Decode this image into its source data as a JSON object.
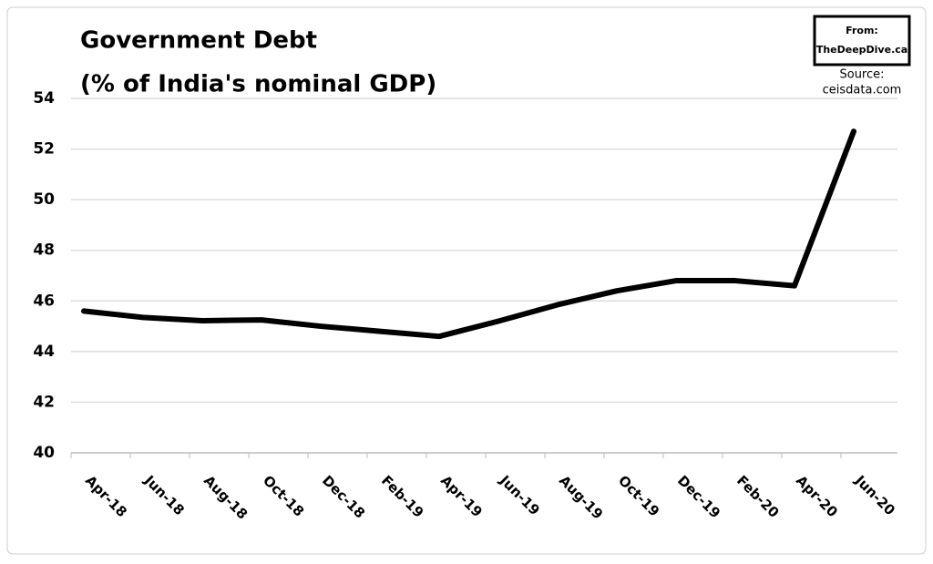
{
  "chart_data": {
    "type": "line",
    "title_lines": [
      "Government Debt",
      "(% of India's nominal GDP)"
    ],
    "badge": [
      "From:",
      "TheDeepDive.ca"
    ],
    "source": [
      "Source:",
      "ceisdata.com"
    ],
    "categories": [
      "Apr-18",
      "Jun-18",
      "Aug-18",
      "Oct-18",
      "Dec-18",
      "Feb-19",
      "Apr-19",
      "Jun-19",
      "Aug-19",
      "Oct-19",
      "Dec-19",
      "Feb-20",
      "Apr-20",
      "Jun-20"
    ],
    "values": [
      45.6,
      45.35,
      45.22,
      45.25,
      45.0,
      44.8,
      44.6,
      45.2,
      45.85,
      46.4,
      46.8,
      46.8,
      46.6,
      52.7
    ],
    "color": "#000000",
    "ylim": [
      40,
      54
    ],
    "yticks": [
      40,
      42,
      44,
      46,
      48,
      50,
      52,
      54
    ],
    "grid": true
  }
}
